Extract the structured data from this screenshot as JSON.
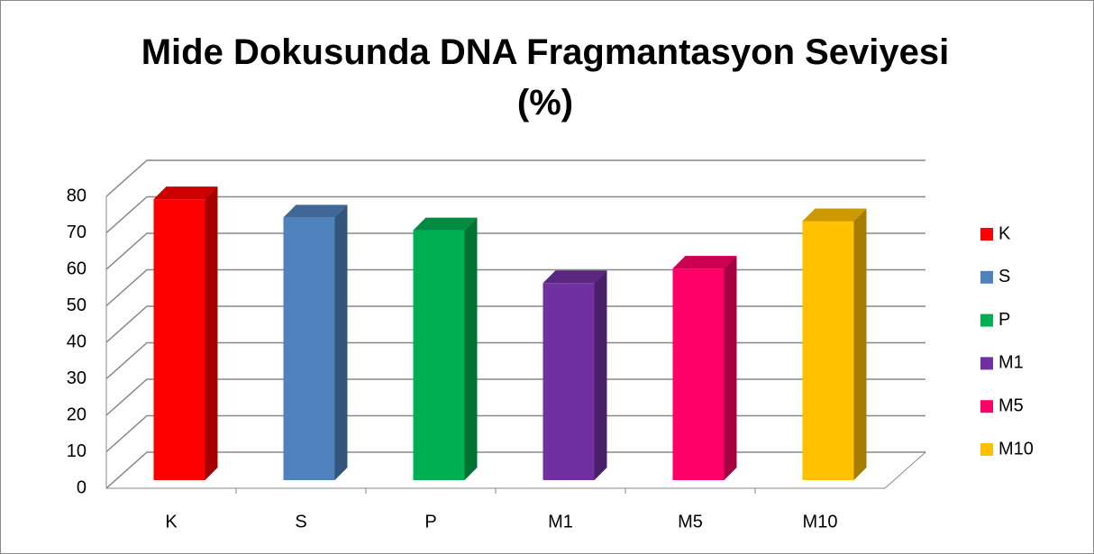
{
  "chart_data": {
    "type": "bar3d",
    "title": "Mide Dokusunda DNA Fragmantasyon Seviyesi (%)",
    "categories": [
      "K",
      "S",
      "P",
      "M1",
      "M5",
      "M10"
    ],
    "values": [
      77,
      72,
      68.5,
      54,
      58,
      71
    ],
    "colors": [
      "#ff0000",
      "#4f81bd",
      "#00b050",
      "#7030a0",
      "#ff0066",
      "#ffc000"
    ],
    "ylim": [
      0,
      80
    ],
    "yticks": [
      0,
      10,
      20,
      30,
      40,
      50,
      60,
      70,
      80
    ],
    "grid": true,
    "legend": "right"
  }
}
